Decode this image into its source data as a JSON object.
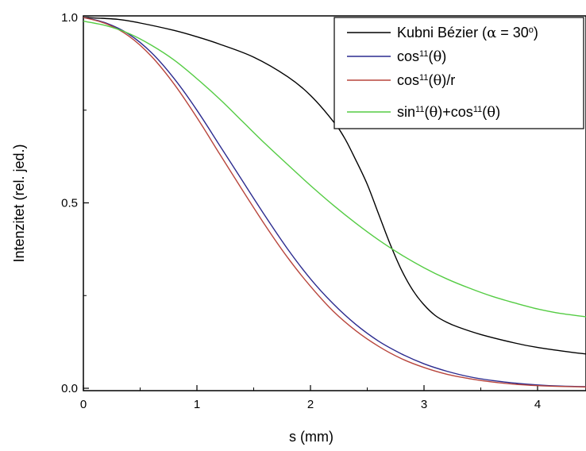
{
  "chart_data": {
    "type": "line",
    "xlabel": "s (mm)",
    "ylabel": "Intenzitet (rel. jed.)",
    "xlim": [
      0,
      4.5
    ],
    "ylim": [
      0,
      1.0
    ],
    "x_ticks": [
      "0",
      "1",
      "2",
      "3",
      "4"
    ],
    "y_ticks": [
      "0.0",
      "0.5",
      "1.0"
    ],
    "legend_position": "top-right",
    "series": [
      {
        "name": "Kubni Bézier (α = 30°)",
        "legend": {
          "pre": "Kubni Bézier (",
          "greek": "α",
          "post": " = 30",
          "sup": "o",
          "end": ")"
        },
        "color": "#000000",
        "x": [
          0,
          0.3,
          0.5,
          0.8,
          1.0,
          1.2,
          1.5,
          1.8,
          2.0,
          2.2,
          2.3,
          2.4,
          2.5,
          2.6,
          2.7,
          2.8,
          2.9,
          3.0,
          3.1,
          3.2,
          3.3,
          3.5,
          3.8,
          4.0,
          4.3,
          4.5
        ],
        "y": [
          1.0,
          0.995,
          0.985,
          0.965,
          0.948,
          0.928,
          0.893,
          0.84,
          0.79,
          0.72,
          0.675,
          0.615,
          0.55,
          0.47,
          0.39,
          0.32,
          0.265,
          0.225,
          0.196,
          0.178,
          0.165,
          0.145,
          0.122,
          0.11,
          0.097,
          0.09
        ]
      },
      {
        "name": "cos11(θ)",
        "legend": {
          "pre": "cos",
          "sup": "11",
          "mid": "(",
          "greek": "θ",
          "end": ")"
        },
        "color": "#2b2b8f",
        "x": [
          0,
          0.2,
          0.4,
          0.6,
          0.8,
          1.0,
          1.2,
          1.4,
          1.6,
          1.8,
          2.0,
          2.2,
          2.4,
          2.6,
          2.8,
          3.0,
          3.2,
          3.4,
          3.6,
          3.8,
          4.0,
          4.2,
          4.5
        ],
        "y": [
          1.0,
          0.985,
          0.955,
          0.905,
          0.835,
          0.75,
          0.655,
          0.56,
          0.465,
          0.375,
          0.295,
          0.228,
          0.172,
          0.127,
          0.093,
          0.066,
          0.046,
          0.031,
          0.021,
          0.014,
          0.009,
          0.006,
          0.004
        ]
      },
      {
        "name": "cos11(θ)/r",
        "legend": {
          "pre": "cos",
          "sup": "11",
          "mid": "(",
          "greek": "θ",
          "end": ")/r"
        },
        "color": "#b8453c",
        "x": [
          0,
          0.2,
          0.4,
          0.6,
          0.8,
          1.0,
          1.2,
          1.4,
          1.6,
          1.8,
          2.0,
          2.2,
          2.4,
          2.6,
          2.8,
          3.0,
          3.2,
          3.4,
          3.6,
          3.8,
          4.0,
          4.2,
          4.5
        ],
        "y": [
          1.0,
          0.983,
          0.95,
          0.895,
          0.82,
          0.73,
          0.632,
          0.535,
          0.44,
          0.352,
          0.275,
          0.208,
          0.155,
          0.113,
          0.08,
          0.056,
          0.038,
          0.026,
          0.017,
          0.011,
          0.007,
          0.005,
          0.003
        ]
      },
      {
        "name": "sin11(θ)+cos11(θ)",
        "legend": {
          "pre": "sin",
          "sup": "11",
          "mid": "(",
          "greek": "θ",
          "mid2": ")+cos",
          "sup2": "11",
          "mid3": "(",
          "greek2": "θ",
          "end": ")"
        },
        "color": "#55cc44",
        "x": [
          0,
          0.2,
          0.4,
          0.6,
          0.8,
          1.0,
          1.2,
          1.4,
          1.6,
          1.8,
          2.0,
          2.2,
          2.4,
          2.6,
          2.8,
          3.0,
          3.2,
          3.4,
          3.6,
          3.8,
          4.0,
          4.2,
          4.5
        ],
        "y": [
          0.99,
          0.978,
          0.957,
          0.925,
          0.885,
          0.835,
          0.78,
          0.72,
          0.66,
          0.603,
          0.547,
          0.494,
          0.445,
          0.4,
          0.36,
          0.325,
          0.295,
          0.27,
          0.248,
          0.23,
          0.214,
          0.202,
          0.19
        ]
      }
    ]
  }
}
